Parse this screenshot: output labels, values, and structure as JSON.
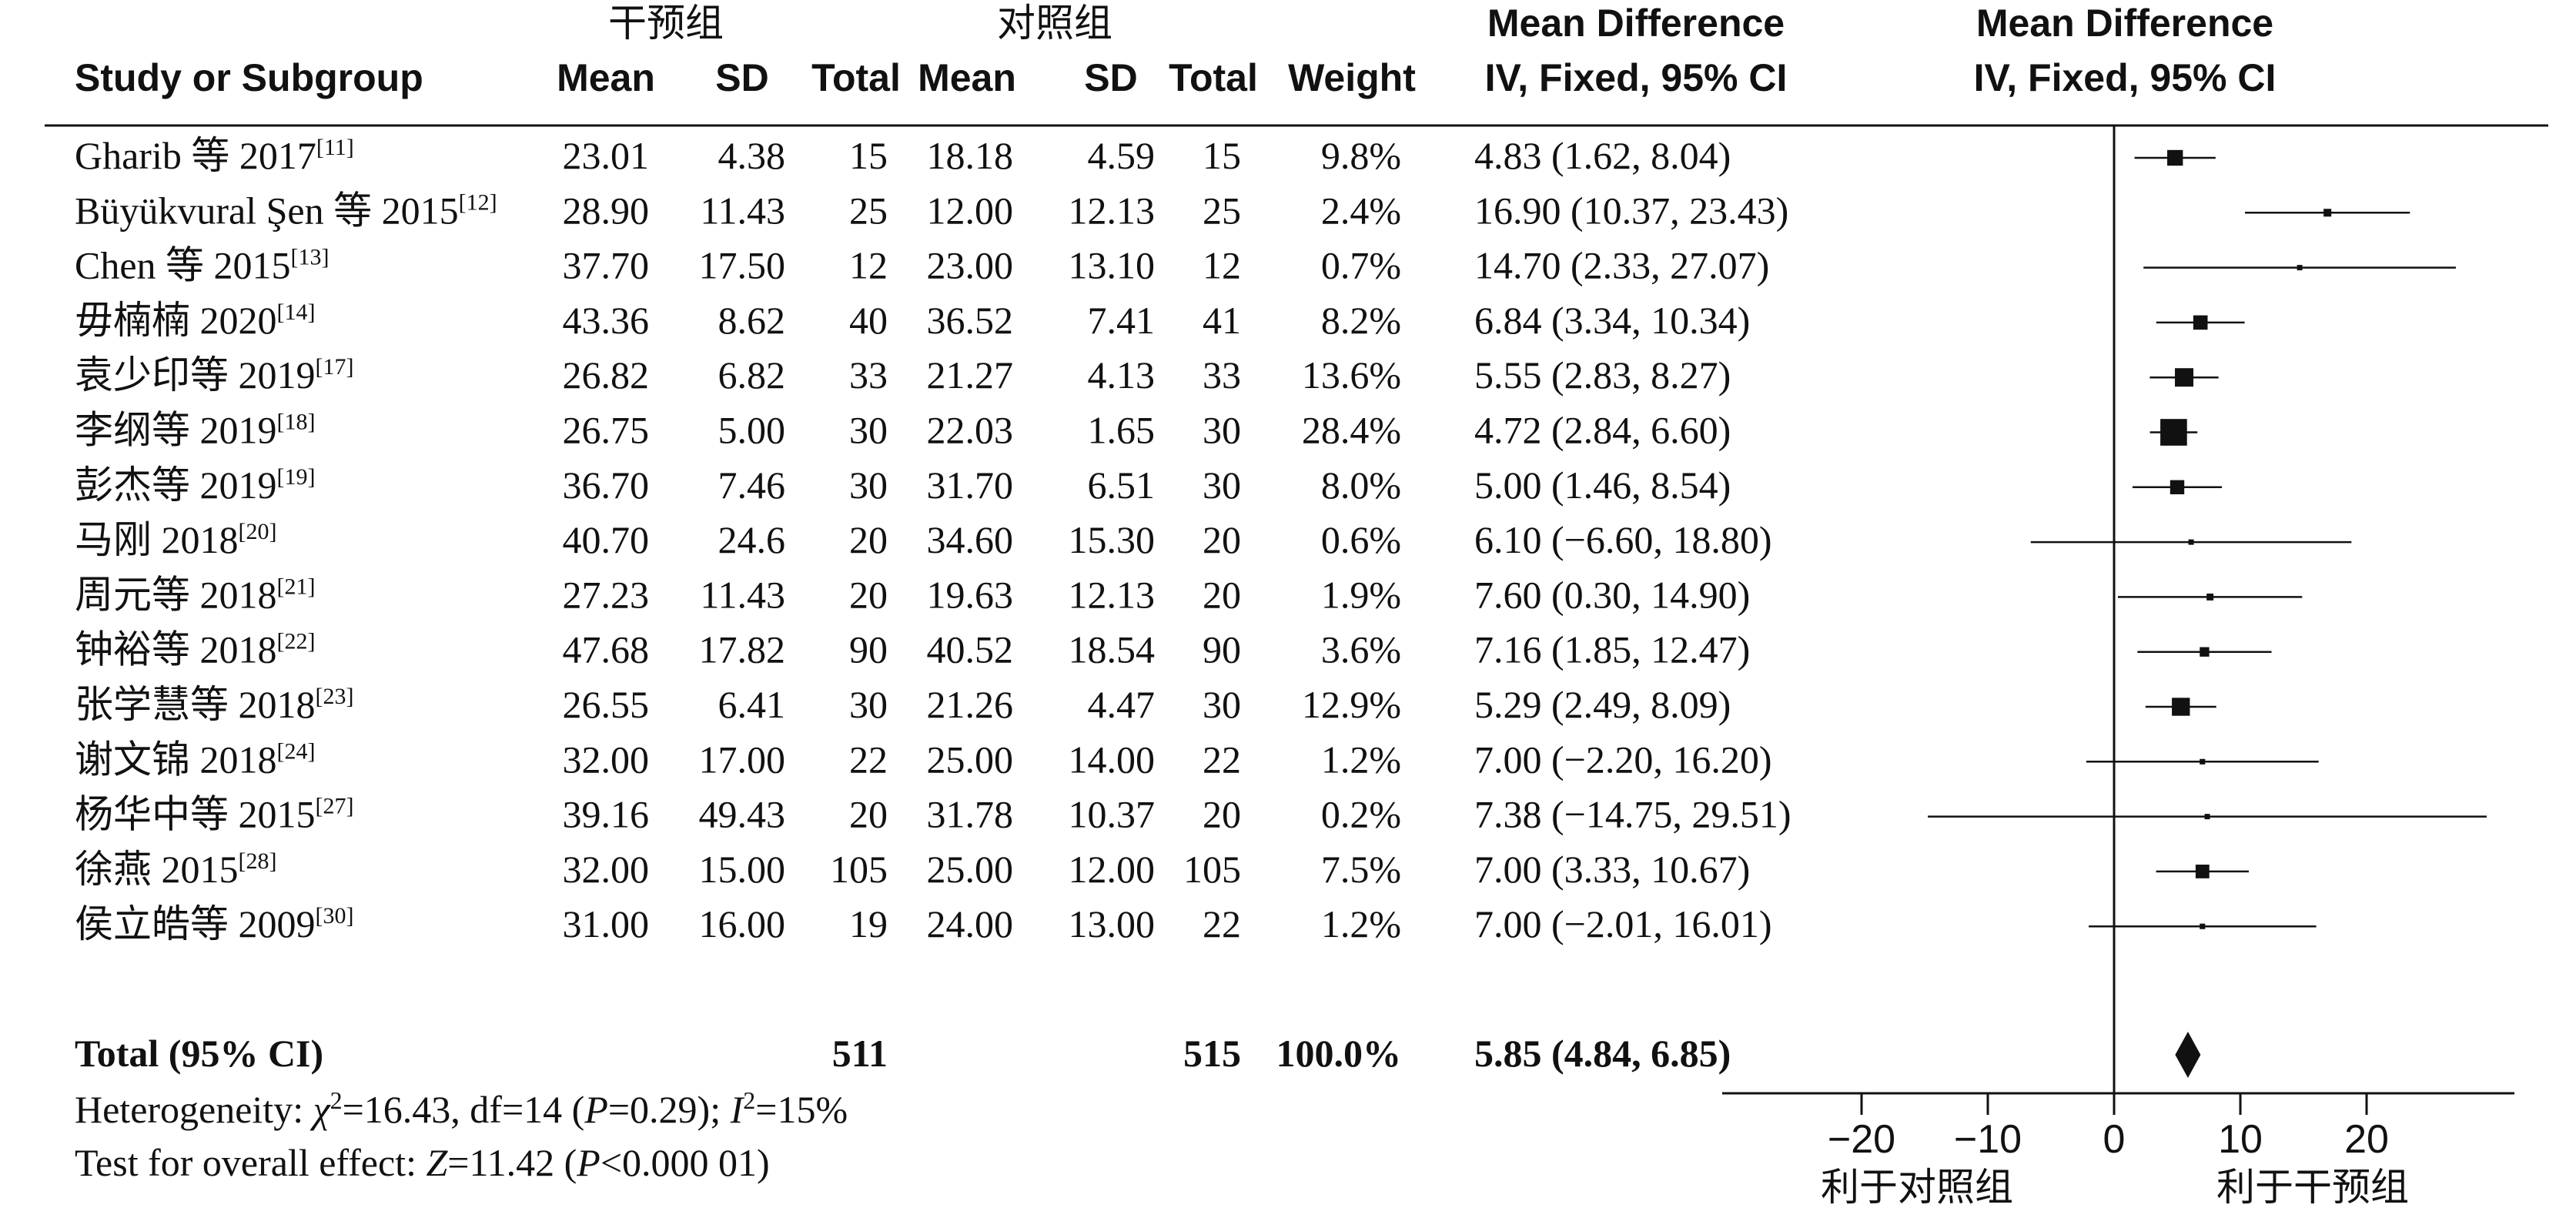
{
  "headers": {
    "group_treatment": "干预组",
    "group_control": "对照组",
    "study": "Study or Subgroup",
    "mean_t": "Mean",
    "sd_t": "SD",
    "total_t": "Total",
    "mean_c": "Mean",
    "sd_c": "SD",
    "total_c": "Total",
    "weight": "Weight",
    "md_line1": "Mean Difference",
    "md_line2": "IV, Fixed, 95% CI",
    "plot_line1": "Mean Difference",
    "plot_line2": "IV, Fixed, 95% CI"
  },
  "studies": [
    {
      "name": "Gharib 等 2017",
      "ref": "[11]",
      "mean_t": "23.01",
      "sd_t": "4.38",
      "total_t": "15",
      "mean_c": "18.18",
      "sd_c": "4.59",
      "total_c": "15",
      "weight": "9.8%",
      "ci_text": "4.83 (1.62, 8.04)"
    },
    {
      "name": "Büyükvural Şen 等 2015",
      "ref": "[12]",
      "mean_t": "28.90",
      "sd_t": "11.43",
      "total_t": "25",
      "mean_c": "12.00",
      "sd_c": "12.13",
      "total_c": "25",
      "weight": "2.4%",
      "ci_text": "16.90 (10.37, 23.43)"
    },
    {
      "name": "Chen 等 2015",
      "ref": "[13]",
      "mean_t": "37.70",
      "sd_t": "17.50",
      "total_t": "12",
      "mean_c": "23.00",
      "sd_c": "13.10",
      "total_c": "12",
      "weight": "0.7%",
      "ci_text": "14.70 (2.33, 27.07)"
    },
    {
      "name": "毋楠楠 2020",
      "ref": "[14]",
      "mean_t": "43.36",
      "sd_t": "8.62",
      "total_t": "40",
      "mean_c": "36.52",
      "sd_c": "7.41",
      "total_c": "41",
      "weight": "8.2%",
      "ci_text": "6.84 (3.34, 10.34)"
    },
    {
      "name": "袁少印等 2019",
      "ref": "[17]",
      "mean_t": "26.82",
      "sd_t": "6.82",
      "total_t": "33",
      "mean_c": "21.27",
      "sd_c": "4.13",
      "total_c": "33",
      "weight": "13.6%",
      "ci_text": "5.55 (2.83, 8.27)"
    },
    {
      "name": "李纲等 2019",
      "ref": "[18]",
      "mean_t": "26.75",
      "sd_t": "5.00",
      "total_t": "30",
      "mean_c": "22.03",
      "sd_c": "1.65",
      "total_c": "30",
      "weight": "28.4%",
      "ci_text": "4.72 (2.84, 6.60)"
    },
    {
      "name": "彭杰等 2019",
      "ref": "[19]",
      "mean_t": "36.70",
      "sd_t": "7.46",
      "total_t": "30",
      "mean_c": "31.70",
      "sd_c": "6.51",
      "total_c": "30",
      "weight": "8.0%",
      "ci_text": "5.00 (1.46, 8.54)"
    },
    {
      "name": "马刚 2018",
      "ref": "[20]",
      "mean_t": "40.70",
      "sd_t": "24.6",
      "total_t": "20",
      "mean_c": "34.60",
      "sd_c": "15.30",
      "total_c": "20",
      "weight": "0.6%",
      "ci_text": "6.10 (−6.60, 18.80)"
    },
    {
      "name": "周元等 2018",
      "ref": "[21]",
      "mean_t": "27.23",
      "sd_t": "11.43",
      "total_t": "20",
      "mean_c": "19.63",
      "sd_c": "12.13",
      "total_c": "20",
      "weight": "1.9%",
      "ci_text": "7.60 (0.30, 14.90)"
    },
    {
      "name": "钟裕等 2018",
      "ref": "[22]",
      "mean_t": "47.68",
      "sd_t": "17.82",
      "total_t": "90",
      "mean_c": "40.52",
      "sd_c": "18.54",
      "total_c": "90",
      "weight": "3.6%",
      "ci_text": "7.16 (1.85, 12.47)"
    },
    {
      "name": "张学慧等 2018",
      "ref": "[23]",
      "mean_t": "26.55",
      "sd_t": "6.41",
      "total_t": "30",
      "mean_c": "21.26",
      "sd_c": "4.47",
      "total_c": "30",
      "weight": "12.9%",
      "ci_text": "5.29 (2.49, 8.09)"
    },
    {
      "name": "谢文锦 2018",
      "ref": "[24]",
      "mean_t": "32.00",
      "sd_t": "17.00",
      "total_t": "22",
      "mean_c": "25.00",
      "sd_c": "14.00",
      "total_c": "22",
      "weight": "1.2%",
      "ci_text": "7.00 (−2.20, 16.20)"
    },
    {
      "name": "杨华中等 2015",
      "ref": "[27]",
      "mean_t": "39.16",
      "sd_t": "49.43",
      "total_t": "20",
      "mean_c": "31.78",
      "sd_c": "10.37",
      "total_c": "20",
      "weight": "0.2%",
      "ci_text": "7.38 (−14.75, 29.51)"
    },
    {
      "name": "徐燕 2015",
      "ref": "[28]",
      "mean_t": "32.00",
      "sd_t": "15.00",
      "total_t": "105",
      "mean_c": "25.00",
      "sd_c": "12.00",
      "total_c": "105",
      "weight": "7.5%",
      "ci_text": "7.00 (3.33, 10.67)"
    },
    {
      "name": "侯立皓等 2009",
      "ref": "[30]",
      "mean_t": "31.00",
      "sd_t": "16.00",
      "total_t": "19",
      "mean_c": "24.00",
      "sd_c": "13.00",
      "total_c": "22",
      "weight": "1.2%",
      "ci_text": "7.00 (−2.01, 16.01)"
    }
  ],
  "total": {
    "label": "Total (95% CI)",
    "total_t": "511",
    "total_c": "515",
    "weight": "100.0%",
    "ci_text": "5.85 (4.84, 6.85)"
  },
  "footer": {
    "heterogeneity": {
      "prefix": "Heterogeneity: ",
      "chi": "χ",
      "sup": "2",
      "a": "=16.43, df=14 (",
      "p": "P",
      "b": "=0.29); ",
      "i": "I",
      "c": "=15%"
    },
    "overall": {
      "prefix": "Test for overall effect: ",
      "z": "Z",
      "a": "=11.42 (",
      "p": "P",
      "b": "<0.000 01)"
    }
  },
  "axis": {
    "ticks": [
      {
        "value": -20,
        "label": "−20"
      },
      {
        "value": -10,
        "label": "−10"
      },
      {
        "value": 0,
        "label": "0"
      },
      {
        "value": 10,
        "label": "10"
      },
      {
        "value": 20,
        "label": "20"
      }
    ],
    "favours_left": "利于对照组",
    "favours_right": "利于干预组"
  },
  "chart_data": {
    "type": "forest",
    "xlim": [
      -30.5,
      30.5
    ],
    "null_line": 0,
    "series": [
      {
        "name": "Gharib 等 2017",
        "md": 4.83,
        "lo": 1.62,
        "hi": 8.04,
        "weight": 9.8
      },
      {
        "name": "Büyükvural Şen 等 2015",
        "md": 16.9,
        "lo": 10.37,
        "hi": 23.43,
        "weight": 2.4
      },
      {
        "name": "Chen 等 2015",
        "md": 14.7,
        "lo": 2.33,
        "hi": 27.07,
        "weight": 0.7
      },
      {
        "name": "毋楠楠 2020",
        "md": 6.84,
        "lo": 3.34,
        "hi": 10.34,
        "weight": 8.2
      },
      {
        "name": "袁少印等 2019",
        "md": 5.55,
        "lo": 2.83,
        "hi": 8.27,
        "weight": 13.6
      },
      {
        "name": "李纲等 2019",
        "md": 4.72,
        "lo": 2.84,
        "hi": 6.6,
        "weight": 28.4
      },
      {
        "name": "彭杰等 2019",
        "md": 5.0,
        "lo": 1.46,
        "hi": 8.54,
        "weight": 8.0
      },
      {
        "name": "马刚 2018",
        "md": 6.1,
        "lo": -6.6,
        "hi": 18.8,
        "weight": 0.6
      },
      {
        "name": "周元等 2018",
        "md": 7.6,
        "lo": 0.3,
        "hi": 14.9,
        "weight": 1.9
      },
      {
        "name": "钟裕等 2018",
        "md": 7.16,
        "lo": 1.85,
        "hi": 12.47,
        "weight": 3.6
      },
      {
        "name": "张学慧等 2018",
        "md": 5.29,
        "lo": 2.49,
        "hi": 8.09,
        "weight": 12.9
      },
      {
        "name": "谢文锦 2018",
        "md": 7.0,
        "lo": -2.2,
        "hi": 16.2,
        "weight": 1.2
      },
      {
        "name": "杨华中等 2015",
        "md": 7.38,
        "lo": -14.75,
        "hi": 29.51,
        "weight": 0.2
      },
      {
        "name": "徐燕 2015",
        "md": 7.0,
        "lo": 3.33,
        "hi": 10.67,
        "weight": 7.5
      },
      {
        "name": "侯立皓等 2009",
        "md": 7.0,
        "lo": -2.01,
        "hi": 16.01,
        "weight": 1.2
      }
    ],
    "pooled": {
      "name": "Total (95% CI)",
      "md": 5.85,
      "lo": 4.84,
      "hi": 6.85,
      "weight": 100.0
    }
  }
}
